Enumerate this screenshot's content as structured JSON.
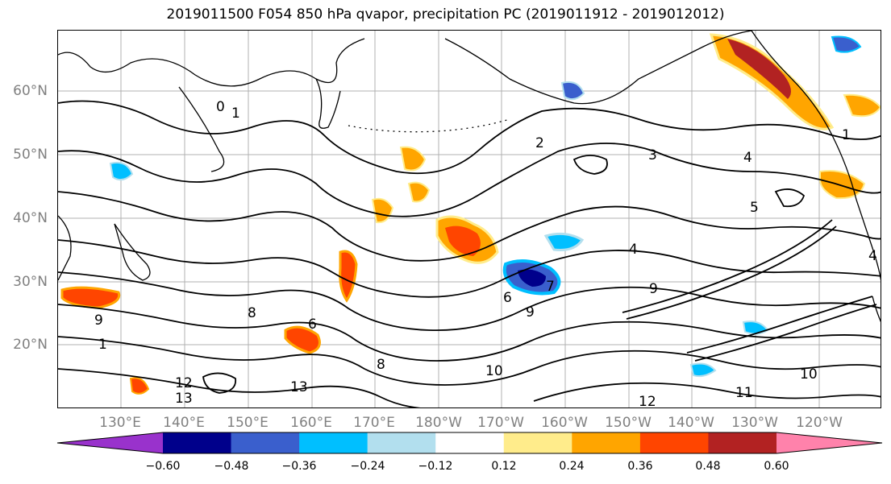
{
  "title": "2019011500 F054 850 hPa qvapor, precipitation PC (2019011912 - 2019012012)",
  "map": {
    "lat_labels": [
      "60°N",
      "50°N",
      "40°N",
      "30°N",
      "20°N"
    ],
    "lon_labels": [
      "130°E",
      "140°E",
      "150°E",
      "160°E",
      "170°E",
      "180°W",
      "170°W",
      "160°W",
      "150°W",
      "140°W",
      "130°W",
      "120°W"
    ],
    "contour_labels": [
      "0",
      "1",
      "2",
      "3",
      "4",
      "4",
      "5",
      "6",
      "7",
      "8",
      "9",
      "9",
      "10",
      "10",
      "11",
      "12",
      "12",
      "13",
      "13",
      "1",
      "1",
      "6",
      "9",
      "8",
      "4"
    ]
  },
  "colorbar": {
    "ticks": [
      "−0.60",
      "−0.48",
      "−0.36",
      "−0.24",
      "−0.12",
      "0.12",
      "0.24",
      "0.36",
      "0.48",
      "0.60"
    ],
    "colors": [
      "#9932CC",
      "#00008B",
      "#3A5FCD",
      "#00BFFF",
      "#B2DFEE",
      "#FFFFFF",
      "#FFEC8B",
      "#FFA500",
      "#FF4500",
      "#B22222",
      "#FF82AB"
    ]
  }
}
